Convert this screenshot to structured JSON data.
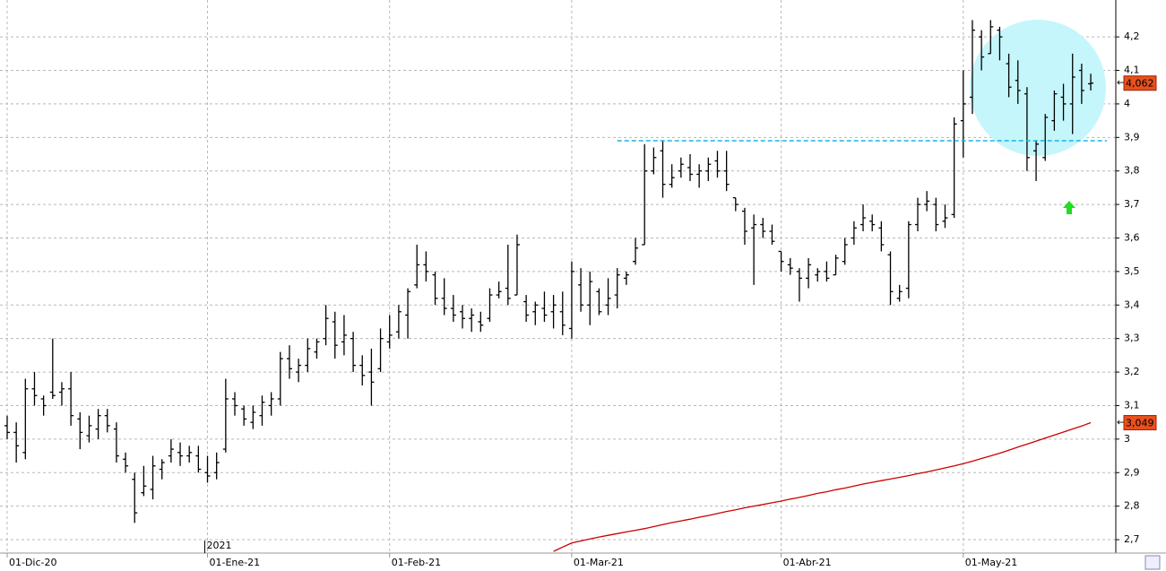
{
  "chart_data": {
    "type": "ohlc",
    "categories": [
      "01-Dic-20",
      null,
      null,
      null,
      null,
      null,
      null,
      null,
      null,
      null,
      null,
      null,
      null,
      null,
      null,
      null,
      null,
      null,
      null,
      null,
      null,
      null,
      "01-Ene-21",
      null,
      null,
      null,
      null,
      null,
      null,
      null,
      null,
      null,
      null,
      null,
      null,
      null,
      null,
      null,
      null,
      null,
      null,
      null,
      "01-Feb-21",
      null,
      null,
      null,
      null,
      null,
      null,
      null,
      null,
      null,
      null,
      null,
      null,
      null,
      null,
      null,
      null,
      null,
      null,
      null,
      "01-Mar-21",
      null,
      null,
      null,
      null,
      null,
      null,
      null,
      null,
      null,
      null,
      null,
      null,
      null,
      null,
      null,
      null,
      null,
      null,
      null,
      null,
      null,
      null,
      "01-Abr-21",
      null,
      null,
      null,
      null,
      null,
      null,
      null,
      null,
      null,
      null,
      null,
      null,
      null,
      null,
      null,
      null,
      null,
      null,
      null,
      "01-May-21",
      null,
      null,
      null,
      null,
      null,
      null,
      null,
      null,
      null,
      null,
      null,
      null,
      null,
      null
    ],
    "year_label": "2021",
    "ohlc": [
      [
        3.04,
        3.07,
        3.0,
        3.02
      ],
      [
        3.02,
        3.05,
        2.93,
        2.98
      ],
      [
        2.96,
        3.18,
        2.94,
        3.15
      ],
      [
        3.15,
        3.2,
        3.1,
        3.13
      ],
      [
        3.12,
        3.13,
        3.07,
        3.1
      ],
      [
        3.14,
        3.3,
        3.12,
        3.13
      ],
      [
        3.14,
        3.17,
        3.1,
        3.15
      ],
      [
        3.15,
        3.2,
        3.04,
        3.07
      ],
      [
        3.06,
        3.08,
        2.97,
        3.02
      ],
      [
        3.01,
        3.07,
        2.99,
        3.04
      ],
      [
        3.03,
        3.09,
        3.0,
        3.07
      ],
      [
        3.07,
        3.09,
        3.02,
        3.04
      ],
      [
        3.03,
        3.05,
        2.93,
        2.95
      ],
      [
        2.94,
        2.96,
        2.9,
        2.92
      ],
      [
        2.88,
        2.9,
        2.75,
        2.78
      ],
      [
        2.84,
        2.92,
        2.83,
        2.86
      ],
      [
        2.85,
        2.95,
        2.82,
        2.92
      ],
      [
        2.91,
        2.94,
        2.88,
        2.93
      ],
      [
        2.95,
        3.0,
        2.93,
        2.97
      ],
      [
        2.96,
        2.99,
        2.92,
        2.95
      ],
      [
        2.95,
        2.98,
        2.93,
        2.96
      ],
      [
        2.95,
        2.98,
        2.9,
        2.91
      ],
      [
        2.9,
        2.95,
        2.87,
        2.89
      ],
      [
        2.9,
        2.96,
        2.88,
        2.93
      ],
      [
        2.97,
        3.18,
        2.96,
        3.12
      ],
      [
        3.12,
        3.14,
        3.07,
        3.1
      ],
      [
        3.09,
        3.1,
        3.04,
        3.06
      ],
      [
        3.05,
        3.1,
        3.03,
        3.08
      ],
      [
        3.07,
        3.13,
        3.04,
        3.11
      ],
      [
        3.1,
        3.14,
        3.07,
        3.12
      ],
      [
        3.12,
        3.26,
        3.1,
        3.24
      ],
      [
        3.24,
        3.28,
        3.18,
        3.21
      ],
      [
        3.2,
        3.24,
        3.17,
        3.22
      ],
      [
        3.22,
        3.3,
        3.2,
        3.27
      ],
      [
        3.26,
        3.3,
        3.24,
        3.29
      ],
      [
        3.3,
        3.4,
        3.28,
        3.36
      ],
      [
        3.35,
        3.38,
        3.24,
        3.28
      ],
      [
        3.29,
        3.37,
        3.25,
        3.31
      ],
      [
        3.3,
        3.32,
        3.2,
        3.22
      ],
      [
        3.22,
        3.25,
        3.16,
        3.19
      ],
      [
        3.2,
        3.27,
        3.1,
        3.17
      ],
      [
        3.21,
        3.33,
        3.2,
        3.3
      ],
      [
        3.29,
        3.37,
        3.27,
        3.31
      ],
      [
        3.32,
        3.4,
        3.3,
        3.38
      ],
      [
        3.37,
        3.45,
        3.3,
        3.44
      ],
      [
        3.46,
        3.58,
        3.45,
        3.52
      ],
      [
        3.52,
        3.56,
        3.47,
        3.5
      ],
      [
        3.49,
        3.5,
        3.4,
        3.42
      ],
      [
        3.42,
        3.48,
        3.37,
        3.39
      ],
      [
        3.39,
        3.43,
        3.35,
        3.37
      ],
      [
        3.38,
        3.4,
        3.33,
        3.36
      ],
      [
        3.36,
        3.39,
        3.32,
        3.37
      ],
      [
        3.35,
        3.38,
        3.32,
        3.34
      ],
      [
        3.36,
        3.45,
        3.35,
        3.43
      ],
      [
        3.43,
        3.47,
        3.42,
        3.44
      ],
      [
        3.45,
        3.58,
        3.4,
        3.42
      ],
      [
        3.43,
        3.61,
        3.43,
        3.58
      ],
      [
        3.41,
        3.43,
        3.35,
        3.37
      ],
      [
        3.38,
        3.41,
        3.34,
        3.4
      ],
      [
        3.39,
        3.44,
        3.35,
        3.37
      ],
      [
        3.38,
        3.43,
        3.33,
        3.4
      ],
      [
        3.38,
        3.44,
        3.31,
        3.34
      ],
      [
        3.33,
        3.53,
        3.3,
        3.5
      ],
      [
        3.46,
        3.51,
        3.38,
        3.4
      ],
      [
        3.4,
        3.5,
        3.34,
        3.47
      ],
      [
        3.44,
        3.45,
        3.37,
        3.38
      ],
      [
        3.4,
        3.48,
        3.37,
        3.42
      ],
      [
        3.43,
        3.51,
        3.39,
        3.49
      ],
      [
        3.48,
        3.5,
        3.46,
        3.49
      ],
      [
        3.53,
        3.6,
        3.52,
        3.57
      ],
      [
        3.58,
        3.88,
        3.58,
        3.8
      ],
      [
        3.8,
        3.87,
        3.79,
        3.84
      ],
      [
        3.86,
        3.89,
        3.72,
        3.76
      ],
      [
        3.76,
        3.82,
        3.75,
        3.78
      ],
      [
        3.8,
        3.84,
        3.78,
        3.82
      ],
      [
        3.81,
        3.85,
        3.77,
        3.79
      ],
      [
        3.79,
        3.82,
        3.75,
        3.8
      ],
      [
        3.8,
        3.84,
        3.77,
        3.82
      ],
      [
        3.83,
        3.86,
        3.78,
        3.8
      ],
      [
        3.8,
        3.86,
        3.74,
        3.76
      ],
      [
        3.72,
        3.72,
        3.68,
        3.7
      ],
      [
        3.68,
        3.69,
        3.58,
        3.62
      ],
      [
        3.63,
        3.67,
        3.46,
        3.64
      ],
      [
        3.64,
        3.66,
        3.6,
        3.62
      ],
      [
        3.62,
        3.64,
        3.58,
        3.59
      ],
      [
        3.56,
        3.56,
        3.5,
        3.53
      ],
      [
        3.52,
        3.54,
        3.49,
        3.51
      ],
      [
        3.5,
        3.51,
        3.41,
        3.48
      ],
      [
        3.48,
        3.54,
        3.45,
        3.52
      ],
      [
        3.49,
        3.51,
        3.47,
        3.5
      ],
      [
        3.5,
        3.53,
        3.47,
        3.48
      ],
      [
        3.49,
        3.55,
        3.49,
        3.54
      ],
      [
        3.53,
        3.6,
        3.52,
        3.58
      ],
      [
        3.6,
        3.65,
        3.58,
        3.63
      ],
      [
        3.64,
        3.7,
        3.62,
        3.66
      ],
      [
        3.65,
        3.67,
        3.62,
        3.64
      ],
      [
        3.63,
        3.65,
        3.56,
        3.58
      ],
      [
        3.55,
        3.56,
        3.4,
        3.44
      ],
      [
        3.42,
        3.46,
        3.41,
        3.44
      ],
      [
        3.45,
        3.65,
        3.42,
        3.64
      ],
      [
        3.64,
        3.72,
        3.62,
        3.7
      ],
      [
        3.7,
        3.74,
        3.68,
        3.71
      ],
      [
        3.7,
        3.72,
        3.62,
        3.64
      ],
      [
        3.65,
        3.7,
        3.63,
        3.66
      ],
      [
        3.67,
        3.96,
        3.66,
        3.94
      ],
      [
        3.95,
        4.1,
        3.84,
        4.0
      ],
      [
        4.02,
        4.25,
        3.97,
        4.22
      ],
      [
        4.2,
        4.22,
        4.1,
        4.14
      ],
      [
        4.15,
        4.25,
        4.15,
        4.23
      ],
      [
        4.22,
        4.23,
        4.13,
        4.2
      ],
      [
        4.12,
        4.15,
        4.02,
        4.05
      ],
      [
        4.07,
        4.13,
        4.0,
        4.04
      ],
      [
        4.03,
        4.05,
        3.8,
        3.84
      ],
      [
        3.86,
        3.89,
        3.77,
        3.88
      ],
      [
        3.84,
        3.97,
        3.83,
        3.96
      ],
      [
        3.95,
        4.04,
        3.92,
        4.03
      ],
      [
        4.02,
        4.06,
        3.95,
        4.0
      ],
      [
        4.0,
        4.15,
        3.91,
        4.08
      ],
      [
        4.1,
        4.12,
        4.0,
        4.04
      ],
      [
        4.06,
        4.09,
        4.04,
        4.062
      ]
    ],
    "bar_color": "#000000",
    "moving_average": {
      "color": "#cc0000",
      "values": [
        null,
        null,
        null,
        null,
        null,
        null,
        null,
        null,
        null,
        null,
        null,
        null,
        null,
        null,
        null,
        null,
        null,
        null,
        null,
        null,
        null,
        null,
        null,
        null,
        null,
        null,
        null,
        null,
        null,
        null,
        null,
        null,
        null,
        null,
        null,
        null,
        null,
        null,
        null,
        null,
        null,
        null,
        null,
        null,
        null,
        null,
        null,
        null,
        null,
        null,
        null,
        null,
        null,
        null,
        null,
        null,
        null,
        null,
        null,
        null,
        2.665,
        2.678,
        2.69,
        2.696,
        2.702,
        2.708,
        2.713,
        2.718,
        2.723,
        2.728,
        2.733,
        2.739,
        2.745,
        2.751,
        2.756,
        2.761,
        2.767,
        2.772,
        2.778,
        2.784,
        2.789,
        2.795,
        2.8,
        2.805,
        2.81,
        2.815,
        2.821,
        2.826,
        2.832,
        2.838,
        2.843,
        2.849,
        2.854,
        2.86,
        2.866,
        2.871,
        2.876,
        2.881,
        2.886,
        2.891,
        2.897,
        2.902,
        2.908,
        2.914,
        2.92,
        2.927,
        2.934,
        2.942,
        2.95,
        2.958,
        2.967,
        2.976,
        2.985,
        2.994,
        3.003,
        3.012,
        3.021,
        3.03,
        3.039,
        3.049
      ]
    },
    "last_value_labels": {
      "close": "4,062",
      "moving_average": "3,049"
    },
    "level_line": {
      "value": 3.89,
      "start_index": 67,
      "color": "#1ab4e8"
    },
    "ylim": [
      2.66,
      4.31
    ],
    "yticks": [
      {
        "value": 2.7,
        "label": "2,7"
      },
      {
        "value": 2.8,
        "label": "2,8"
      },
      {
        "value": 2.9,
        "label": "2,9"
      },
      3,
      {
        "value": 3.1,
        "label": "3,1"
      },
      {
        "value": 3.2,
        "label": "3,2"
      },
      {
        "value": 3.3,
        "label": "3,3"
      },
      {
        "value": 3.4,
        "label": "3,4"
      },
      {
        "value": 3.5,
        "label": "3,5"
      },
      {
        "value": 3.6,
        "label": "3,6"
      },
      {
        "value": 3.7,
        "label": "3,7"
      },
      {
        "value": 3.8,
        "label": "3,8"
      },
      {
        "value": 3.9,
        "label": "3,9"
      },
      4,
      {
        "value": 4.1,
        "label": "4,1"
      },
      {
        "value": 4.2,
        "label": "4,2"
      }
    ],
    "grid": true
  }
}
